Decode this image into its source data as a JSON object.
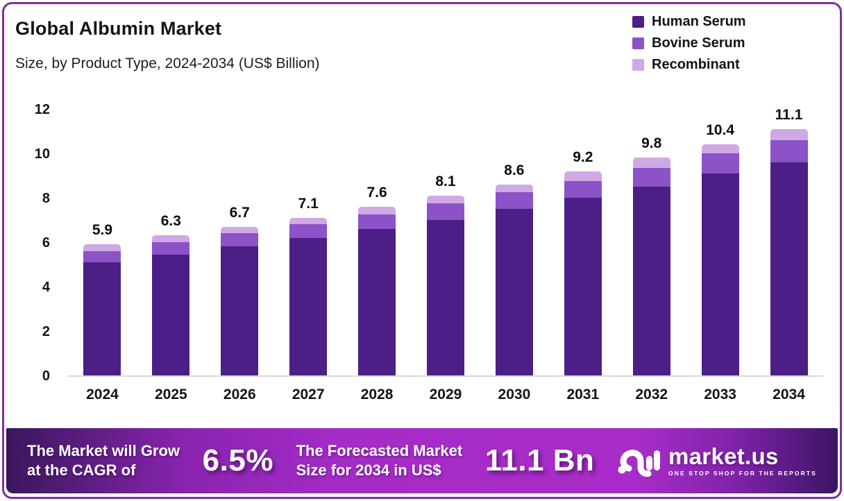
{
  "frame": {
    "border_color": "#7E2FA0"
  },
  "header": {
    "title": "Global Albumin Market",
    "subtitle": "Size, by Product Type, 2024-2034 (US$ Billion)"
  },
  "legend": [
    {
      "label": "Human Serum",
      "color": "#4B1F86"
    },
    {
      "label": "Bovine Serum",
      "color": "#8C52C8"
    },
    {
      "label": "Recombinant",
      "color": "#CFA9E4"
    }
  ],
  "chart_data": {
    "type": "bar",
    "stacked": true,
    "title": "Global Albumin Market Size, by Product Type, 2024-2034 (US$ Billion)",
    "categories": [
      "2024",
      "2025",
      "2026",
      "2027",
      "2028",
      "2029",
      "2030",
      "2031",
      "2032",
      "2033",
      "2034"
    ],
    "series": [
      {
        "name": "Human Serum",
        "color": "#4B1F86",
        "values": [
          5.1,
          5.45,
          5.8,
          6.2,
          6.6,
          7.0,
          7.5,
          8.0,
          8.5,
          9.1,
          9.6
        ]
      },
      {
        "name": "Bovine Serum",
        "color": "#8C52C8",
        "values": [
          0.5,
          0.55,
          0.6,
          0.6,
          0.65,
          0.75,
          0.75,
          0.75,
          0.85,
          0.9,
          1.0
        ]
      },
      {
        "name": "Recombinant",
        "color": "#CFA9E4",
        "values": [
          0.3,
          0.3,
          0.3,
          0.3,
          0.35,
          0.35,
          0.35,
          0.45,
          0.45,
          0.4,
          0.5
        ]
      }
    ],
    "totals": [
      5.9,
      6.3,
      6.7,
      7.1,
      7.6,
      8.1,
      8.6,
      9.2,
      9.8,
      10.4,
      11.1
    ],
    "xlabel": "",
    "ylabel": "",
    "ylim": [
      0,
      12
    ],
    "yticks": [
      0,
      2,
      4,
      6,
      8,
      10,
      12
    ],
    "grid": false,
    "legend_position": "top-right"
  },
  "footer": {
    "cagr_label_line1": "The Market will Grow",
    "cagr_label_line2": "at the CAGR of",
    "cagr_value": "6.5%",
    "forecast_label_line1": "The Forecasted Market",
    "forecast_label_line2": "Size for 2034 in US$",
    "forecast_value": "11.1 Bn",
    "brand": {
      "name": "market.us",
      "tagline": "ONE STOP SHOP FOR THE REPORTS"
    }
  }
}
